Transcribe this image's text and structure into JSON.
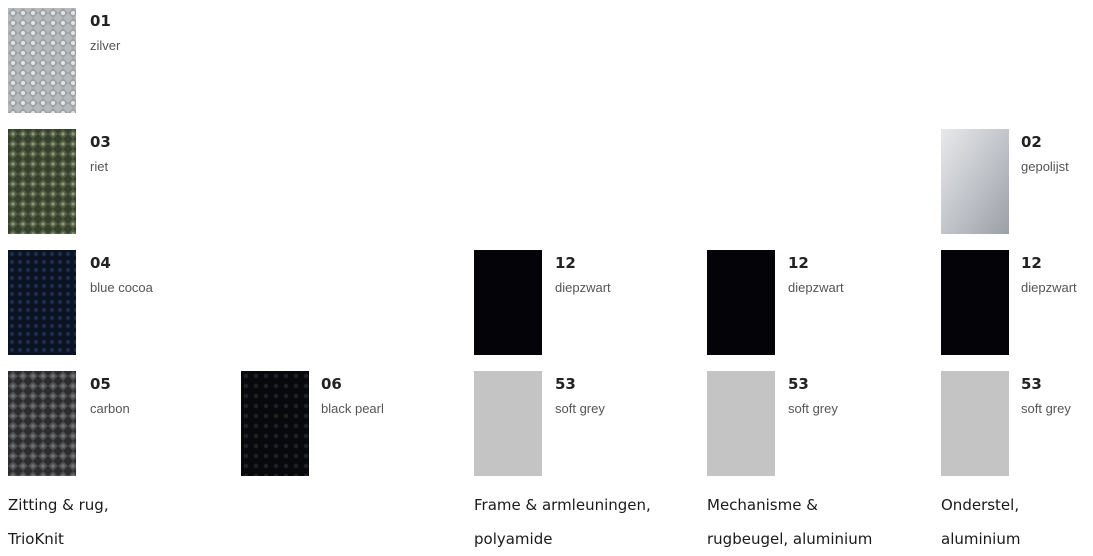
{
  "columns": [
    {
      "caption": [
        "Zitting & rug,",
        "TrioKnit"
      ],
      "items": [
        {
          "code": "01",
          "name": "zilver",
          "color": "#b9bcbd"
        },
        {
          "code": "03",
          "name": "riet",
          "color": "#3f4a34"
        },
        {
          "code": "04",
          "name": "blue cocoa",
          "color": "#101a2c"
        },
        {
          "code": "05",
          "name": "carbon",
          "color": "#3c3c3e"
        },
        {
          "code": "06",
          "name": "black pearl",
          "color": "#0d0e12"
        }
      ]
    },
    {
      "caption": [
        "Frame & armleuningen,",
        "polyamide"
      ],
      "items": [
        {
          "code": "12",
          "name": "diepzwart",
          "color": "#040408"
        },
        {
          "code": "53",
          "name": "soft grey",
          "color": "#c4c4c5"
        }
      ]
    },
    {
      "caption": [
        "Mechanisme &",
        "rugbeugel, aluminium"
      ],
      "items": [
        {
          "code": "12",
          "name": "diepzwart",
          "color": "#040408"
        },
        {
          "code": "53",
          "name": "soft grey",
          "color": "#c4c4c5"
        }
      ]
    },
    {
      "caption": [
        "Onderstel,",
        "aluminium"
      ],
      "items": [
        {
          "code": "02",
          "name": "gepolijst",
          "color": "#c9cbcf"
        },
        {
          "code": "12",
          "name": "diepzwart",
          "color": "#040408"
        },
        {
          "code": "53",
          "name": "soft grey",
          "color": "#c4c4c5"
        }
      ]
    }
  ]
}
